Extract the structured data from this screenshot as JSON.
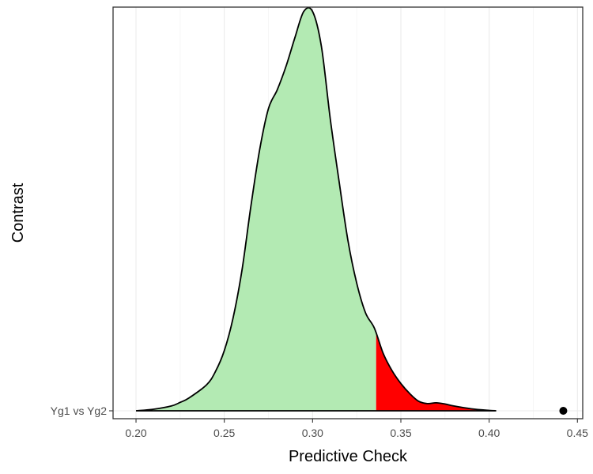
{
  "chart_data": {
    "type": "area",
    "xlabel": "Predictive Check",
    "ylabel": "Contrast",
    "xlim": [
      0.187,
      0.453
    ],
    "x_ticks": [
      "0.20",
      "0.25",
      "0.30",
      "0.35",
      "0.40",
      "0.45"
    ],
    "x_tick_values": [
      0.2,
      0.25,
      0.3,
      0.35,
      0.4,
      0.45
    ],
    "y_categories": [
      "Yg1 vs Yg2"
    ],
    "grid": true,
    "legend": "none",
    "density": {
      "x": [
        0.2,
        0.21,
        0.22,
        0.225,
        0.23,
        0.24,
        0.245,
        0.25,
        0.255,
        0.26,
        0.265,
        0.27,
        0.275,
        0.28,
        0.285,
        0.29,
        0.295,
        0.3,
        0.305,
        0.31,
        0.315,
        0.32,
        0.325,
        0.33,
        0.335,
        0.34,
        0.345,
        0.35,
        0.355,
        0.36,
        0.365,
        0.37,
        0.375,
        0.38,
        0.39,
        0.4,
        0.404
      ],
      "y": [
        0.0,
        0.004,
        0.012,
        0.021,
        0.032,
        0.065,
        0.098,
        0.15,
        0.232,
        0.35,
        0.508,
        0.65,
        0.753,
        0.8,
        0.859,
        0.93,
        0.995,
        0.995,
        0.908,
        0.728,
        0.572,
        0.425,
        0.318,
        0.244,
        0.206,
        0.143,
        0.1,
        0.068,
        0.043,
        0.024,
        0.018,
        0.02,
        0.017,
        0.012,
        0.005,
        0.001,
        0.0
      ]
    },
    "threshold": 0.336,
    "observed": {
      "x": 0.442,
      "category": "Yg1 vs Yg2"
    },
    "colors": {
      "below_threshold_fill": "#b3eab3",
      "above_threshold_fill": "#ff0000",
      "outline": "#000000",
      "observed_point": "#000000",
      "grid": "#ebebeb",
      "panel_border": "#333333"
    }
  }
}
